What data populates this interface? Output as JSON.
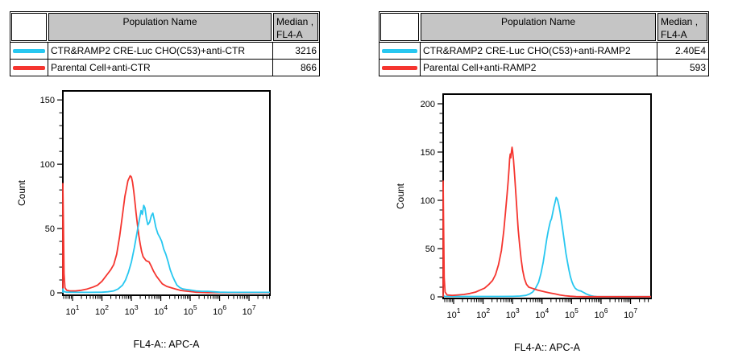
{
  "colors": {
    "cyan": "#27c7f0",
    "red": "#f5352f",
    "table_header_bg": "#c5c5c5",
    "axis": "#000000",
    "background": "#ffffff"
  },
  "panels": [
    {
      "table": {
        "header": {
          "population": "Population Name",
          "median_line1": "Median ,",
          "median_line2": "FL4-A"
        },
        "rows": [
          {
            "swatch_color": "cyan",
            "name": "CTR&RAMP2 CRE-Luc CHO(C53)+anti-CTR",
            "median": "3216"
          },
          {
            "swatch_color": "red",
            "name": "Parental Cell+anti-CTR",
            "median": "866"
          }
        ]
      }
    },
    {
      "table": {
        "header": {
          "population": "Population Name",
          "median_line1": "Median ,",
          "median_line2": "FL4-A"
        },
        "rows": [
          {
            "swatch_color": "cyan",
            "name": "CTR&RAMP2 CRE-Luc CHO(C53)+anti-RAMP2",
            "median": "2.40E4"
          },
          {
            "swatch_color": "red",
            "name": "Parental Cell+anti-RAMP2",
            "median": "593"
          }
        ]
      }
    }
  ],
  "chart_data": [
    {
      "type": "line",
      "subtype": "flow-cytometry-histogram-overlay",
      "title": "",
      "xlabel": "FL4-A:: APC-A",
      "ylabel": "Count",
      "xscale": "log",
      "xlim_log10": [
        0.67,
        7.71
      ],
      "x_tick_exponents": [
        1,
        2,
        3,
        4,
        5,
        6,
        7
      ],
      "ylim": [
        0,
        157
      ],
      "y_ticks": [
        0,
        50,
        100,
        150
      ],
      "y_minor_step": 10,
      "grid": false,
      "legend": "none",
      "series": [
        {
          "name": "Parental Cell+anti-CTR",
          "color": "red",
          "median_fl4a": 866,
          "points_log10x_count": [
            [
              0.67,
              0
            ],
            [
              0.67,
              85
            ],
            [
              0.69,
              55
            ],
            [
              0.71,
              15
            ],
            [
              0.74,
              4
            ],
            [
              0.8,
              2
            ],
            [
              0.9,
              1.5
            ],
            [
              1.1,
              1.5
            ],
            [
              1.3,
              2
            ],
            [
              1.5,
              3
            ],
            [
              1.7,
              4.5
            ],
            [
              1.85,
              6
            ],
            [
              2.0,
              9
            ],
            [
              2.1,
              12
            ],
            [
              2.2,
              15
            ],
            [
              2.3,
              18
            ],
            [
              2.4,
              22
            ],
            [
              2.5,
              30
            ],
            [
              2.6,
              44
            ],
            [
              2.7,
              61
            ],
            [
              2.78,
              75
            ],
            [
              2.84,
              82
            ],
            [
              2.88,
              87
            ],
            [
              2.92,
              89
            ],
            [
              2.96,
              91
            ],
            [
              3.0,
              90
            ],
            [
              3.04,
              86
            ],
            [
              3.08,
              79
            ],
            [
              3.12,
              71
            ],
            [
              3.16,
              62
            ],
            [
              3.2,
              54
            ],
            [
              3.25,
              45
            ],
            [
              3.3,
              38
            ],
            [
              3.35,
              32
            ],
            [
              3.4,
              28
            ],
            [
              3.5,
              25
            ],
            [
              3.6,
              24
            ],
            [
              3.67,
              21
            ],
            [
              3.75,
              17
            ],
            [
              3.85,
              13
            ],
            [
              3.95,
              10
            ],
            [
              4.05,
              7
            ],
            [
              4.2,
              5
            ],
            [
              4.35,
              4
            ],
            [
              4.5,
              3
            ],
            [
              4.65,
              2
            ],
            [
              4.8,
              1.5
            ],
            [
              5.0,
              1
            ],
            [
              5.2,
              0.5
            ],
            [
              5.4,
              0.3
            ],
            [
              5.6,
              0.2
            ],
            [
              6.0,
              0.2
            ],
            [
              6.5,
              0.2
            ],
            [
              7.0,
              0.2
            ],
            [
              7.71,
              0.2
            ]
          ]
        },
        {
          "name": "CTR&RAMP2 CRE-Luc CHO(C53)+anti-CTR",
          "color": "cyan",
          "median_fl4a": 3216,
          "points_log10x_count": [
            [
              0.67,
              0
            ],
            [
              0.67,
              3
            ],
            [
              0.7,
              1
            ],
            [
              0.8,
              0.5
            ],
            [
              1.2,
              0.4
            ],
            [
              1.6,
              0.4
            ],
            [
              2.0,
              0.5
            ],
            [
              2.2,
              0.8
            ],
            [
              2.4,
              1.5
            ],
            [
              2.55,
              3
            ],
            [
              2.7,
              6
            ],
            [
              2.8,
              10
            ],
            [
              2.9,
              16
            ],
            [
              3.0,
              24
            ],
            [
              3.1,
              35
            ],
            [
              3.2,
              48
            ],
            [
              3.28,
              58
            ],
            [
              3.33,
              64
            ],
            [
              3.37,
              61
            ],
            [
              3.42,
              68
            ],
            [
              3.46,
              66
            ],
            [
              3.51,
              58
            ],
            [
              3.56,
              53
            ],
            [
              3.62,
              55
            ],
            [
              3.68,
              60
            ],
            [
              3.73,
              62
            ],
            [
              3.78,
              57
            ],
            [
              3.83,
              51
            ],
            [
              3.9,
              46
            ],
            [
              3.97,
              43
            ],
            [
              4.03,
              40
            ],
            [
              4.1,
              34
            ],
            [
              4.17,
              30
            ],
            [
              4.25,
              24
            ],
            [
              4.32,
              18
            ],
            [
              4.4,
              13
            ],
            [
              4.48,
              9
            ],
            [
              4.55,
              6
            ],
            [
              4.65,
              4
            ],
            [
              4.75,
              3
            ],
            [
              4.9,
              2.5
            ],
            [
              5.05,
              2
            ],
            [
              5.2,
              1.5
            ],
            [
              5.4,
              1.2
            ],
            [
              5.6,
              1.2
            ],
            [
              5.8,
              0.8
            ],
            [
              6.0,
              0.5
            ],
            [
              6.3,
              0.4
            ],
            [
              6.6,
              0.4
            ],
            [
              7.0,
              0.4
            ],
            [
              7.71,
              0.4
            ]
          ]
        }
      ]
    },
    {
      "type": "line",
      "subtype": "flow-cytometry-histogram-overlay",
      "title": "",
      "xlabel": "FL4-A:: APC-A",
      "ylabel": "Count",
      "xscale": "log",
      "xlim_log10": [
        0.645,
        7.695
      ],
      "x_tick_exponents": [
        1,
        2,
        3,
        4,
        5,
        6,
        7
      ],
      "ylim": [
        0,
        210
      ],
      "y_ticks": [
        0,
        50,
        100,
        150,
        200
      ],
      "y_minor_step": 10,
      "grid": false,
      "legend": "none",
      "series": [
        {
          "name": "CTR&RAMP2 CRE-Luc CHO(C53)+anti-RAMP2",
          "color": "cyan",
          "median_fl4a": 24000,
          "points_log10x_count": [
            [
              0.645,
              0
            ],
            [
              0.645,
              2
            ],
            [
              0.68,
              0.5
            ],
            [
              1.0,
              0.4
            ],
            [
              1.5,
              0.4
            ],
            [
              2.0,
              0.4
            ],
            [
              2.5,
              0.4
            ],
            [
              3.0,
              0.5
            ],
            [
              3.25,
              0.8
            ],
            [
              3.45,
              1.5
            ],
            [
              3.58,
              3
            ],
            [
              3.68,
              5
            ],
            [
              3.78,
              9
            ],
            [
              3.88,
              15
            ],
            [
              3.96,
              24
            ],
            [
              4.04,
              36
            ],
            [
              4.1,
              48
            ],
            [
              4.16,
              60
            ],
            [
              4.22,
              70
            ],
            [
              4.28,
              78
            ],
            [
              4.32,
              81
            ],
            [
              4.36,
              87
            ],
            [
              4.4,
              93
            ],
            [
              4.44,
              98
            ],
            [
              4.48,
              103
            ],
            [
              4.52,
              101
            ],
            [
              4.56,
              96
            ],
            [
              4.61,
              88
            ],
            [
              4.66,
              78
            ],
            [
              4.71,
              67
            ],
            [
              4.76,
              56
            ],
            [
              4.81,
              45
            ],
            [
              4.86,
              36
            ],
            [
              4.91,
              28
            ],
            [
              4.96,
              21
            ],
            [
              5.01,
              16
            ],
            [
              5.06,
              12
            ],
            [
              5.12,
              9
            ],
            [
              5.18,
              7.5
            ],
            [
              5.25,
              6.5
            ],
            [
              5.32,
              6
            ],
            [
              5.38,
              5
            ],
            [
              5.44,
              4
            ],
            [
              5.5,
              3
            ],
            [
              5.58,
              2
            ],
            [
              5.66,
              1.2
            ],
            [
              5.75,
              0.6
            ],
            [
              5.85,
              0.3
            ],
            [
              6.0,
              0.2
            ],
            [
              6.4,
              0.2
            ],
            [
              7.0,
              0.2
            ],
            [
              7.695,
              0.2
            ]
          ]
        },
        {
          "name": "Parental Cell+anti-RAMP2",
          "color": "red",
          "median_fl4a": 593,
          "points_log10x_count": [
            [
              0.645,
              0
            ],
            [
              0.645,
              120
            ],
            [
              0.66,
              80
            ],
            [
              0.68,
              20
            ],
            [
              0.71,
              5
            ],
            [
              0.78,
              2
            ],
            [
              0.95,
              1.5
            ],
            [
              1.15,
              2
            ],
            [
              1.35,
              2.5
            ],
            [
              1.55,
              3.5
            ],
            [
              1.75,
              5
            ],
            [
              1.9,
              7
            ],
            [
              2.05,
              9
            ],
            [
              2.2,
              13
            ],
            [
              2.32,
              17
            ],
            [
              2.42,
              23
            ],
            [
              2.52,
              33
            ],
            [
              2.62,
              48
            ],
            [
              2.7,
              68
            ],
            [
              2.76,
              88
            ],
            [
              2.81,
              105
            ],
            [
              2.85,
              120
            ],
            [
              2.88,
              133
            ],
            [
              2.9,
              143
            ],
            [
              2.92,
              148
            ],
            [
              2.94,
              144
            ],
            [
              2.96,
              150
            ],
            [
              2.98,
              155
            ],
            [
              3.0,
              151
            ],
            [
              3.03,
              142
            ],
            [
              3.07,
              126
            ],
            [
              3.11,
              107
            ],
            [
              3.15,
              88
            ],
            [
              3.19,
              70
            ],
            [
              3.24,
              53
            ],
            [
              3.29,
              39
            ],
            [
              3.34,
              28
            ],
            [
              3.4,
              19
            ],
            [
              3.47,
              13
            ],
            [
              3.55,
              10
            ],
            [
              3.65,
              9
            ],
            [
              3.75,
              8
            ],
            [
              3.85,
              7
            ],
            [
              3.98,
              6
            ],
            [
              4.12,
              5
            ],
            [
              4.28,
              4
            ],
            [
              4.45,
              3
            ],
            [
              4.6,
              2
            ],
            [
              4.78,
              1.2
            ],
            [
              4.95,
              0.7
            ],
            [
              5.15,
              0.3
            ],
            [
              5.4,
              0.2
            ],
            [
              5.8,
              0.2
            ],
            [
              6.3,
              0.2
            ],
            [
              7.0,
              0.2
            ],
            [
              7.695,
              0.2
            ]
          ]
        }
      ]
    }
  ]
}
